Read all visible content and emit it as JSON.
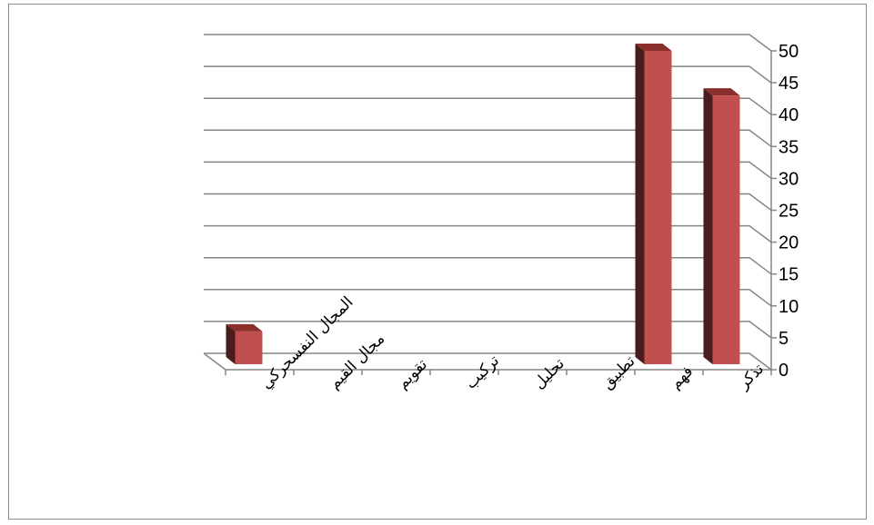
{
  "chart_data": {
    "type": "bar",
    "categories": [
      "تذكر",
      "فهم",
      "تطبيق",
      "تحليل",
      "تركيب",
      "تقويم",
      "مجال القيم",
      "المجال النفسحركي"
    ],
    "values": [
      43,
      50,
      0,
      0,
      0,
      0,
      0,
      6
    ],
    "ylim": [
      0,
      50
    ],
    "yticks": [
      0,
      5,
      10,
      15,
      20,
      25,
      30,
      35,
      40,
      45,
      50
    ],
    "grid": true,
    "legend": "none",
    "axis_side": "right",
    "title": "",
    "xlabel": "",
    "ylabel": ""
  },
  "colors": {
    "bar_front": "#c0504d",
    "bar_side": "#4a1d1c",
    "bar_top": "#8b2f2d",
    "gridline": "#868686"
  }
}
